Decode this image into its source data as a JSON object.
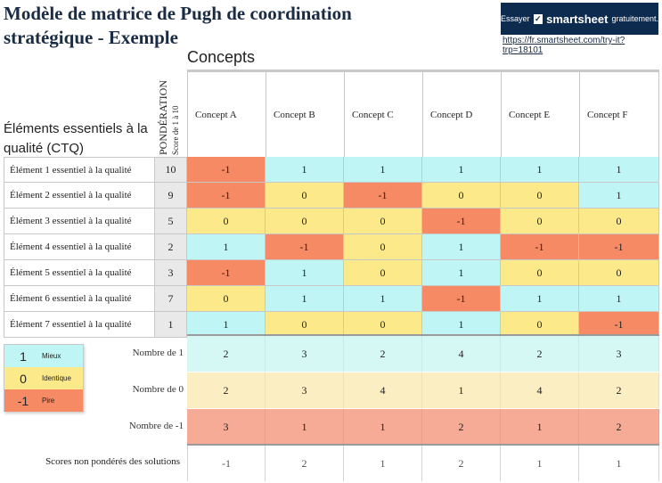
{
  "title": "Modèle de matrice de Pugh de coordination stratégique - Exemple",
  "banner": {
    "prefix": "Essayer",
    "check_icon": "check-icon",
    "brand": "smartsheet",
    "suffix": "gratuitement.",
    "link": "https://fr.smartsheet.com/try-it?trp=18101"
  },
  "concepts_label": "Concepts",
  "ctq_header": "Éléments essentiels à la qualité (CTQ)",
  "weight_header": {
    "title": "PONDÉRATION",
    "subtitle": "Score de 1 à 10"
  },
  "concepts": [
    "Concept A",
    "Concept B",
    "Concept C",
    "Concept D",
    "Concept E",
    "Concept F"
  ],
  "colors": {
    "better": "#bff5f4",
    "same": "#fbe98a",
    "worse": "#f58a64",
    "better_light": "#d6f8f5",
    "same_light": "#fbeec2",
    "worse_light": "#f5ab96"
  },
  "rows": [
    {
      "label": "Élément 1 essentiel à la qualité",
      "weight": "10",
      "scores": [
        "-1",
        "1",
        "1",
        "1",
        "1",
        "1"
      ]
    },
    {
      "label": "Élément 2 essentiel à la qualité",
      "weight": "9",
      "scores": [
        "-1",
        "0",
        "-1",
        "0",
        "0",
        "1"
      ]
    },
    {
      "label": "Élément 3 essentiel à la qualité",
      "weight": "5",
      "scores": [
        "0",
        "0",
        "0",
        "-1",
        "0",
        "0"
      ]
    },
    {
      "label": "Élément 4 essentiel à la qualité",
      "weight": "2",
      "scores": [
        "1",
        "-1",
        "0",
        "1",
        "-1",
        "-1"
      ]
    },
    {
      "label": "Élément 5 essentiel à la qualité",
      "weight": "3",
      "scores": [
        "-1",
        "1",
        "0",
        "1",
        "0",
        "0"
      ]
    },
    {
      "label": "Élément 6 essentiel à la qualité",
      "weight": "7",
      "scores": [
        "0",
        "1",
        "1",
        "-1",
        "1",
        "1"
      ]
    },
    {
      "label": "Élément 7 essentiel à la qualité",
      "weight": "1",
      "scores": [
        "1",
        "0",
        "0",
        "1",
        "0",
        "-1"
      ]
    }
  ],
  "legend": [
    {
      "value": "1",
      "label": "Mieux",
      "key": "better"
    },
    {
      "value": "0",
      "label": "Identique",
      "key": "same"
    },
    {
      "value": "-1",
      "label": "Pire",
      "key": "worse"
    }
  ],
  "summary": [
    {
      "label": "Nombre de 1",
      "key": "better_light",
      "values": [
        "2",
        "3",
        "2",
        "4",
        "2",
        "3"
      ]
    },
    {
      "label": "Nombre de 0",
      "key": "same_light",
      "values": [
        "2",
        "3",
        "4",
        "1",
        "4",
        "2"
      ]
    },
    {
      "label": "Nombre de -1",
      "key": "worse_light",
      "values": [
        "3",
        "1",
        "1",
        "2",
        "1",
        "2"
      ]
    }
  ],
  "scores_label": "Scores non pondérés des solutions",
  "scores": [
    "-1",
    "2",
    "1",
    "2",
    "1",
    "1"
  ]
}
